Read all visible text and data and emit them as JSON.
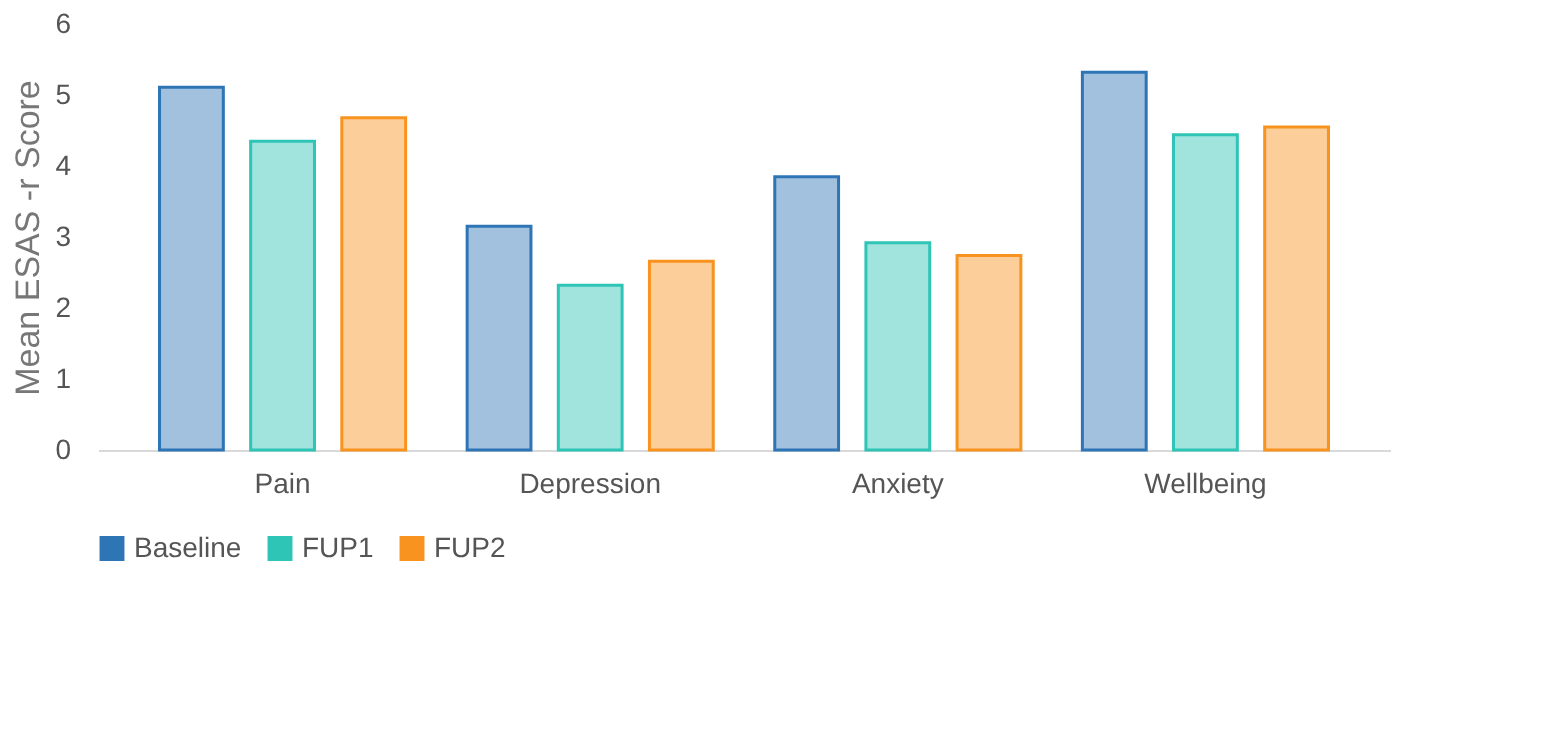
{
  "chart_data": {
    "type": "bar",
    "ylabel": "Mean ESAS -r Score",
    "categories": [
      "Pain",
      "Depression",
      "Anxiety",
      "Wellbeing"
    ],
    "series": [
      {
        "name": "Baseline",
        "color": "#2e75b6",
        "values": [
          5.11,
          3.15,
          3.85,
          5.32
        ]
      },
      {
        "name": "FUP1",
        "color": "#2ec4b6",
        "values": [
          4.35,
          2.32,
          2.92,
          4.44
        ]
      },
      {
        "name": "FUP2",
        "color": "#f7931e",
        "values": [
          4.68,
          2.66,
          2.74,
          4.55
        ]
      }
    ],
    "ylim": [
      0,
      6
    ],
    "yticks": [
      0,
      1,
      2,
      3,
      4,
      5,
      6
    ],
    "grid": false,
    "legend": "bottom"
  }
}
